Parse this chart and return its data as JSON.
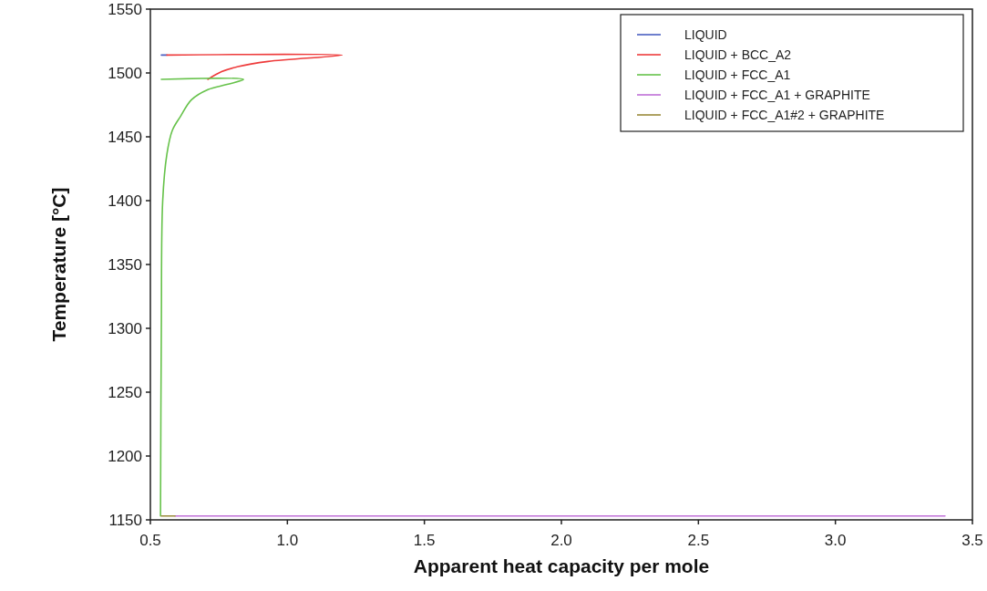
{
  "chart_data": {
    "type": "line",
    "xlabel": "Apparent heat capacity per mole",
    "ylabel": "Temperature [°C]",
    "xlim": [
      0.5,
      3.5
    ],
    "ylim": [
      1150,
      1550
    ],
    "xticks": [
      0.5,
      {
        "value": 1,
        "label": "1.0"
      },
      1.5,
      {
        "value": 2,
        "label": "2.0"
      },
      2.5,
      {
        "value": 3,
        "label": "3.0"
      },
      3.5
    ],
    "yticks": [
      1150,
      1200,
      1250,
      1300,
      1350,
      1400,
      1450,
      1500,
      1550
    ],
    "grid": false,
    "legend": "top right",
    "marker": "none",
    "line_style": "solid",
    "series": [
      {
        "name": "LIQUID",
        "color": "#4a5fc1",
        "x": [
          0.54,
          0.56
        ],
        "values": [
          1514,
          1514
        ]
      },
      {
        "name": "LIQUID + BCC_A2",
        "color": "#ee3b3b",
        "x": [
          0.56,
          1.2,
          0.93,
          0.82,
          0.76,
          0.71
        ],
        "values": [
          1514,
          1514,
          1509,
          1505,
          1501,
          1495
        ]
      },
      {
        "name": "LIQUID + FCC_A1",
        "color": "#66c24a",
        "x": [
          0.54,
          0.84,
          0.78,
          0.71,
          0.65,
          0.61,
          0.58,
          0.56,
          0.545,
          0.54,
          0.537
        ],
        "values": [
          1495,
          1495,
          1491,
          1487,
          1479,
          1466,
          1455,
          1436,
          1400,
          1300,
          1153
        ]
      },
      {
        "name": "LIQUID + FCC_A1 + GRAPHITE",
        "color": "#c070d8",
        "x": [
          0.59,
          3.4
        ],
        "values": [
          1153,
          1153
        ]
      },
      {
        "name": "LIQUID + FCC_A1#2 + GRAPHITE",
        "color": "#9a8a3a",
        "x": [
          0.54,
          0.59
        ],
        "values": [
          1153,
          1153
        ]
      }
    ]
  }
}
